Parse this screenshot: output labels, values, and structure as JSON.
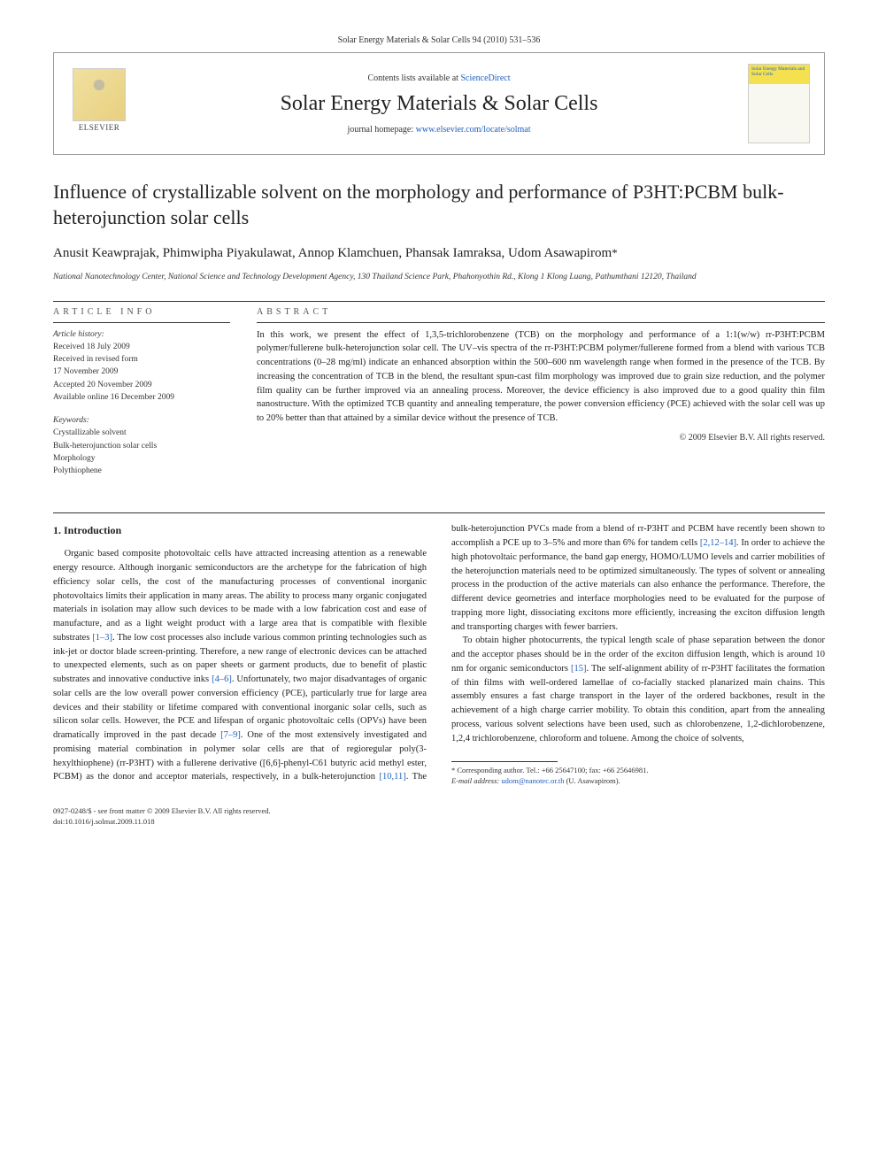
{
  "journal_header_line": "Solar Energy Materials & Solar Cells 94 (2010) 531–536",
  "header_box": {
    "contents_prefix": "Contents lists available at ",
    "contents_link": "ScienceDirect",
    "journal_title": "Solar Energy Materials & Solar Cells",
    "homepage_prefix": "journal homepage: ",
    "homepage_link": "www.elsevier.com/locate/solmat",
    "elsevier_text": "ELSEVIER",
    "cover_text": "Solar Energy Materials and Solar Cells"
  },
  "article_title": "Influence of crystallizable solvent on the morphology and performance of P3HT:PCBM bulk-heterojunction solar cells",
  "authors": "Anusit Keawprajak, Phimwipha Piyakulawat, Annop Klamchuen, Phansak Iamraksa, Udom Asawapirom",
  "corresponding_symbol": "*",
  "affiliation": "National Nanotechnology Center, National Science and Technology Development Agency, 130 Thailand Science Park, Phahonyothin Rd., Klong 1 Klong Luang, Pathumthani 12120, Thailand",
  "article_info": {
    "heading": "article info",
    "history_label": "Article history:",
    "received": "Received 18 July 2009",
    "revised_l1": "Received in revised form",
    "revised_l2": "17 November 2009",
    "accepted": "Accepted 20 November 2009",
    "online": "Available online 16 December 2009",
    "keywords_label": "Keywords:",
    "kw1": "Crystallizable solvent",
    "kw2": "Bulk-heterojunction solar cells",
    "kw3": "Morphology",
    "kw4": "Polythiophene"
  },
  "abstract": {
    "heading": "abstract",
    "text": "In this work, we present the effect of 1,3,5-trichlorobenzene (TCB) on the morphology and performance of a 1:1(w/w) rr-P3HT:PCBM polymer/fullerene bulk-heterojunction solar cell. The UV–vis spectra of the rr-P3HT:PCBM polymer/fullerene formed from a blend with various TCB concentrations (0–28 mg/ml) indicate an enhanced absorption within the 500–600 nm wavelength range when formed in the presence of the TCB. By increasing the concentration of TCB in the blend, the resultant spun-cast film morphology was improved due to grain size reduction, and the polymer film quality can be further improved via an annealing process. Moreover, the device efficiency is also improved due to a good quality thin film nanostructure. With the optimized TCB quantity and annealing temperature, the power conversion efficiency (PCE) achieved with the solar cell was up to 20% better than that attained by a similar device without the presence of TCB.",
    "copyright": "© 2009 Elsevier B.V. All rights reserved."
  },
  "section1_heading": "1. Introduction",
  "body": {
    "p1a": "Organic based composite photovoltaic cells have attracted increasing attention as a renewable energy resource. Although inorganic semiconductors are the archetype for the fabrication of high efficiency solar cells, the cost of the manufacturing processes of conventional inorganic photovoltaics limits their application in many areas. The ability to process many organic conjugated materials in isolation may allow such devices to be made with a low fabrication cost and ease of manufacture, and as a light weight product with a large area that is compatible with flexible substrates ",
    "c1": "[1–3]",
    "p1b": ". The low cost processes also include various common printing technologies such as ink-jet or doctor blade screen-printing. Therefore, a new range of electronic devices can be attached to unexpected elements, such as on paper sheets or garment products, due to benefit of plastic substrates and innovative conductive inks ",
    "c2": "[4–6]",
    "p1c": ". Unfortunately, two major disadvantages of organic solar cells are the low overall power conversion efficiency (PCE), particularly true for large area devices and their stability or lifetime compared with conventional inorganic solar cells, such as silicon solar cells. However, the PCE and lifespan of organic photovoltaic cells (OPVs) have been dramatically improved in the past decade ",
    "c3": "[7–9]",
    "p1d": ". One of the most extensively investigated and promising material combination in polymer solar cells are that of regioregular poly(3-hexylthiophene) (rr-P3HT) with a fullerene derivative ([6,6]-phenyl-C61 butyric acid methyl ester, PCBM) as the donor and acceptor materials, respectively, in a bulk-heterojunction ",
    "c4": "[10,11]",
    "p1e": ". The bulk-heterojunction PVCs made from a blend of rr-P3HT and PCBM have recently been shown to accomplish a PCE up to 3–5% and more than 6% for tandem cells ",
    "c5": "[2,12–14]",
    "p1f": ". In order to achieve the high photovoltaic performance, the band gap energy, HOMO/LUMO levels and carrier mobilities of the heterojunction materials need to be optimized simultaneously. The types of solvent or annealing process in the production of the active materials can also enhance the performance. Therefore, the different device geometries and interface morphologies need to be evaluated for the purpose of trapping more light, dissociating excitons more efficiently, increasing the exciton diffusion length and transporting charges with fewer barriers.",
    "p2a": "To obtain higher photocurrents, the typical length scale of phase separation between the donor and the acceptor phases should be in the order of the exciton diffusion length, which is around 10 nm for organic semiconductors ",
    "c6": "[15]",
    "p2b": ". The self-alignment ability of rr-P3HT facilitates the formation of thin films with well-ordered lamellae of co-facially stacked planarized main chains. This assembly ensures a fast charge transport in the layer of the ordered backbones, result in the achievement of a high charge carrier mobility. To obtain this condition, apart from the annealing process, various solvent selections have been used, such as chlorobenzene, 1,2-dichlorobenzene, 1,2,4 trichlorobenzene, chloroform and toluene. Among the choice of solvents,"
  },
  "footnote": {
    "line1_a": "* Corresponding author. Tel.: +66 25647100; fax: +66 25646981.",
    "line2_label": "E-mail address: ",
    "line2_email": "udom@nanotec.or.th",
    "line2_tail": " (U. Asawapirom)."
  },
  "footer": {
    "line1": "0927-0248/$ - see front matter © 2009 Elsevier B.V. All rights reserved.",
    "line2": "doi:10.1016/j.solmat.2009.11.018"
  }
}
